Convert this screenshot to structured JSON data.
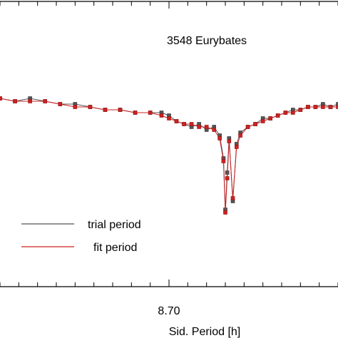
{
  "chart_data": {
    "type": "line",
    "title": "3548 Eurybates",
    "xlabel": "Sid. Period [h]",
    "ylabel": "",
    "x_ticks_labeled": [
      "8.70"
    ],
    "xlim": [
      8.61,
      8.79
    ],
    "ylim": [
      0,
      1
    ],
    "legend_position": "bottom-left",
    "series": [
      {
        "name": "trial period",
        "color": "#555555",
        "x": [
          8.61,
          8.618,
          8.626,
          8.634,
          8.642,
          8.65,
          8.658,
          8.666,
          8.674,
          8.682,
          8.69,
          8.696,
          8.7,
          8.704,
          8.708,
          8.712,
          8.716,
          8.72,
          8.724,
          8.727,
          8.729,
          8.73,
          8.731,
          8.732,
          8.734,
          8.736,
          8.738,
          8.742,
          8.746,
          8.75,
          8.754,
          8.758,
          8.762,
          8.766,
          8.77,
          8.774,
          8.778,
          8.782,
          8.786,
          8.79
        ],
        "values": [
          0.66,
          0.65,
          0.66,
          0.65,
          0.64,
          0.64,
          0.63,
          0.62,
          0.62,
          0.61,
          0.61,
          0.61,
          0.6,
          0.58,
          0.57,
          0.56,
          0.57,
          0.55,
          0.56,
          0.53,
          0.45,
          0.27,
          0.4,
          0.52,
          0.3,
          0.5,
          0.54,
          0.56,
          0.57,
          0.59,
          0.59,
          0.6,
          0.61,
          0.62,
          0.62,
          0.63,
          0.63,
          0.64,
          0.63,
          0.64
        ]
      },
      {
        "name": "fit period",
        "color": "#cc2222",
        "x": [
          8.61,
          8.618,
          8.626,
          8.634,
          8.642,
          8.65,
          8.658,
          8.666,
          8.674,
          8.682,
          8.69,
          8.696,
          8.7,
          8.704,
          8.708,
          8.712,
          8.716,
          8.72,
          8.724,
          8.727,
          8.729,
          8.73,
          8.731,
          8.732,
          8.734,
          8.736,
          8.738,
          8.742,
          8.746,
          8.75,
          8.754,
          8.758,
          8.762,
          8.766,
          8.77,
          8.774,
          8.778,
          8.782,
          8.786,
          8.79
        ],
        "values": [
          0.66,
          0.65,
          0.65,
          0.65,
          0.64,
          0.63,
          0.63,
          0.62,
          0.62,
          0.61,
          0.61,
          0.6,
          0.59,
          0.58,
          0.57,
          0.57,
          0.56,
          0.56,
          0.55,
          0.52,
          0.44,
          0.26,
          0.38,
          0.51,
          0.31,
          0.49,
          0.53,
          0.56,
          0.57,
          0.58,
          0.59,
          0.6,
          0.61,
          0.61,
          0.62,
          0.63,
          0.63,
          0.63,
          0.63,
          0.63
        ]
      }
    ]
  }
}
